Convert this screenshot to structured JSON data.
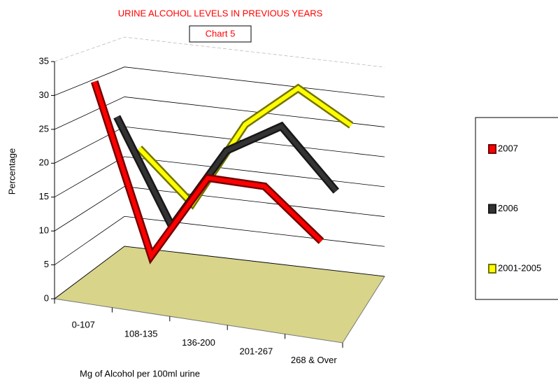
{
  "chart_data": {
    "type": "line3d",
    "title": "URINE ALCOHOL LEVELS IN PREVIOUS YEARS",
    "subtitle": "Chart 5",
    "ylabel": "Percentage",
    "xlabel": "Mg of Alcohol per 100ml urine",
    "categories": [
      "0-107",
      "108-135",
      "136-200",
      "201-267",
      "268 & Over"
    ],
    "series": [
      {
        "name": "2007",
        "color": "#ff0000",
        "values": [
          32,
          7,
          20,
          20,
          13
        ]
      },
      {
        "name": "2006",
        "color": "#333333",
        "values": [
          25,
          9,
          22,
          27,
          18
        ]
      },
      {
        "name": "2001-2005",
        "color": "#ffff00",
        "values": [
          18,
          10,
          24,
          31,
          26
        ]
      }
    ],
    "ylim": [
      0,
      35
    ],
    "yticks": [
      0,
      5,
      10,
      15,
      20,
      25,
      30,
      35
    ],
    "grid": true
  }
}
